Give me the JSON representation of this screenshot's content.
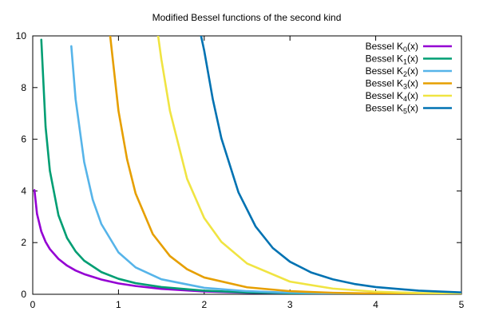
{
  "chart_data": {
    "type": "line",
    "title": "Modified Bessel functions of the second kind",
    "xlabel": "",
    "ylabel": "",
    "xlim": [
      0,
      5
    ],
    "ylim": [
      0,
      10
    ],
    "xticks": [
      "0",
      "1",
      "2",
      "3",
      "4",
      "5"
    ],
    "yticks": [
      "0",
      "2",
      "4",
      "6",
      "8",
      "10"
    ],
    "grid": false,
    "legend_position": "top-right",
    "series": [
      {
        "name_prefix": "Bessel K",
        "name_sub": "0",
        "name_suffix": "(x)",
        "order": 0,
        "color": "#9400d3",
        "x": [
          0.02,
          0.05,
          0.1,
          0.15,
          0.2,
          0.3,
          0.4,
          0.5,
          0.6,
          0.8,
          1.0,
          1.2,
          1.5,
          2.0,
          2.5,
          3.0,
          3.5,
          4.0,
          4.5,
          5.0
        ],
        "y": [
          4.03,
          3.11,
          2.43,
          2.03,
          1.75,
          1.37,
          1.11,
          0.92,
          0.78,
          0.57,
          0.42,
          0.32,
          0.21,
          0.11,
          0.06,
          0.035,
          0.02,
          0.011,
          0.0064,
          0.0037
        ]
      },
      {
        "name_prefix": "Bessel K",
        "name_sub": "1",
        "name_suffix": "(x)",
        "order": 1,
        "color": "#009e73",
        "x": [
          0.1,
          0.15,
          0.2,
          0.3,
          0.4,
          0.5,
          0.6,
          0.8,
          1.0,
          1.2,
          1.5,
          2.0,
          2.5,
          3.0,
          3.5,
          4.0,
          4.5,
          5.0
        ],
        "y": [
          9.85,
          6.48,
          4.78,
          3.06,
          2.18,
          1.66,
          1.3,
          0.86,
          0.6,
          0.43,
          0.28,
          0.14,
          0.07,
          0.04,
          0.022,
          0.012,
          0.0071,
          0.004
        ]
      },
      {
        "name_prefix": "Bessel K",
        "name_sub": "2",
        "name_suffix": "(x)",
        "order": 2,
        "color": "#56b4e9",
        "x": [
          0.45,
          0.5,
          0.6,
          0.7,
          0.8,
          1.0,
          1.2,
          1.5,
          2.0,
          2.5,
          3.0,
          3.5,
          4.0,
          4.5,
          5.0
        ],
        "y": [
          9.6,
          7.55,
          5.12,
          3.66,
          2.72,
          1.62,
          1.04,
          0.58,
          0.25,
          0.12,
          0.062,
          0.033,
          0.017,
          0.0098,
          0.0053
        ]
      },
      {
        "name_prefix": "Bessel K",
        "name_sub": "3",
        "name_suffix": "(x)",
        "order": 3,
        "color": "#e69f00",
        "x": [
          0.9,
          1.0,
          1.1,
          1.2,
          1.4,
          1.6,
          1.8,
          2.0,
          2.5,
          3.0,
          3.5,
          4.0,
          4.5,
          5.0
        ],
        "y": [
          10.1,
          7.1,
          5.23,
          3.9,
          2.33,
          1.48,
          0.97,
          0.65,
          0.27,
          0.12,
          0.058,
          0.029,
          0.015,
          0.0083
        ]
      },
      {
        "name_prefix": "Bessel K",
        "name_sub": "4",
        "name_suffix": "(x)",
        "order": 4,
        "color": "#f0e442",
        "x": [
          1.45,
          1.5,
          1.6,
          1.8,
          2.0,
          2.2,
          2.5,
          3.0,
          3.5,
          4.0,
          4.5,
          5.0
        ],
        "y": [
          10.3,
          9.1,
          7.1,
          4.47,
          2.95,
          2.03,
          1.19,
          0.49,
          0.22,
          0.1,
          0.05,
          0.026
        ]
      },
      {
        "name_prefix": "Bessel K",
        "name_sub": "5",
        "name_suffix": "(x)",
        "order": 5,
        "color": "#0072b2",
        "x": [
          1.95,
          2.0,
          2.1,
          2.2,
          2.4,
          2.6,
          2.8,
          3.0,
          3.25,
          3.5,
          3.75,
          4.0,
          4.5,
          5.0
        ],
        "y": [
          10.2,
          9.43,
          7.55,
          6.04,
          3.94,
          2.62,
          1.79,
          1.26,
          0.84,
          0.58,
          0.4,
          0.28,
          0.14,
          0.07
        ]
      }
    ]
  }
}
